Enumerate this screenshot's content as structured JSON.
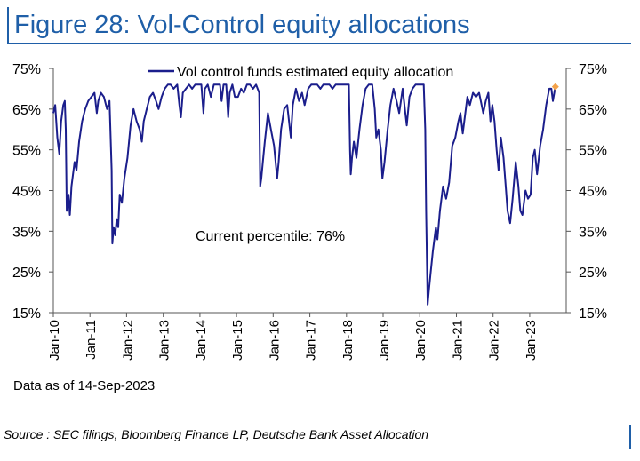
{
  "header": {
    "title": "Figure 28: Vol-Control equity allocations"
  },
  "footer": {
    "data_as_of": "Data as of 14-Sep-2023",
    "source": "Source : SEC filings, Bloomberg Finance LP, Deutsche Bank Asset Allocation"
  },
  "colors": {
    "series": "#1b1e8c",
    "current_marker": "#f4a24a",
    "accent": "#1f5fa8"
  },
  "chart_data": {
    "type": "line",
    "title": "",
    "xlabel": "",
    "ylabel": "",
    "x_tick_labels": [
      "Jan-10",
      "Jan-11",
      "Jan-12",
      "Jan-13",
      "Jan-14",
      "Jan-15",
      "Jan-16",
      "Jan-17",
      "Jan-18",
      "Jan-19",
      "Jan-20",
      "Jan-21",
      "Jan-22",
      "Jan-23"
    ],
    "y_tick_labels_left": [
      "75%",
      "65%",
      "55%",
      "45%",
      "35%",
      "25%",
      "15%"
    ],
    "y_tick_labels_right": [
      "75%",
      "65%",
      "55%",
      "45%",
      "35%",
      "25%",
      "15%"
    ],
    "ylim": [
      15,
      75
    ],
    "xlim": [
      "2010-01-01",
      "2023-12-31"
    ],
    "grid": false,
    "legend": {
      "position": "top",
      "entries": [
        "Vol control funds estimated equity allocation"
      ]
    },
    "annotation": "Current percentile: 76%",
    "current_point": {
      "x": "2023-09-14",
      "y": 70.5
    },
    "series": [
      {
        "name": "Vol control funds estimated equity allocation",
        "points": [
          [
            "2010-01-01",
            64
          ],
          [
            "2010-01-20",
            66
          ],
          [
            "2010-02-10",
            58
          ],
          [
            "2010-03-01",
            54
          ],
          [
            "2010-03-20",
            62
          ],
          [
            "2010-04-10",
            66
          ],
          [
            "2010-04-25",
            67
          ],
          [
            "2010-05-05",
            60
          ],
          [
            "2010-05-15",
            40
          ],
          [
            "2010-06-01",
            44
          ],
          [
            "2010-06-15",
            39
          ],
          [
            "2010-07-01",
            46
          ],
          [
            "2010-08-01",
            52
          ],
          [
            "2010-08-20",
            50
          ],
          [
            "2010-09-15",
            57
          ],
          [
            "2010-10-15",
            62
          ],
          [
            "2010-11-15",
            65
          ],
          [
            "2010-12-15",
            67
          ],
          [
            "2011-01-15",
            68
          ],
          [
            "2011-02-15",
            69
          ],
          [
            "2011-03-10",
            64
          ],
          [
            "2011-03-25",
            67
          ],
          [
            "2011-04-20",
            69
          ],
          [
            "2011-05-20",
            68
          ],
          [
            "2011-06-20",
            65
          ],
          [
            "2011-07-15",
            67
          ],
          [
            "2011-08-05",
            50
          ],
          [
            "2011-08-12",
            32
          ],
          [
            "2011-08-25",
            36
          ],
          [
            "2011-09-10",
            34
          ],
          [
            "2011-09-25",
            38
          ],
          [
            "2011-10-10",
            36
          ],
          [
            "2011-10-25",
            44
          ],
          [
            "2011-11-15",
            42
          ],
          [
            "2011-12-10",
            48
          ],
          [
            "2012-01-10",
            53
          ],
          [
            "2012-02-10",
            61
          ],
          [
            "2012-03-10",
            65
          ],
          [
            "2012-04-10",
            62
          ],
          [
            "2012-05-10",
            60
          ],
          [
            "2012-06-01",
            57
          ],
          [
            "2012-06-20",
            62
          ],
          [
            "2012-07-20",
            65
          ],
          [
            "2012-08-20",
            68
          ],
          [
            "2012-09-20",
            69
          ],
          [
            "2012-10-20",
            67
          ],
          [
            "2012-11-15",
            65
          ],
          [
            "2012-12-15",
            68
          ],
          [
            "2013-01-15",
            70
          ],
          [
            "2013-02-15",
            71
          ],
          [
            "2013-03-15",
            71
          ],
          [
            "2013-04-15",
            70
          ],
          [
            "2013-05-20",
            71
          ],
          [
            "2013-06-10",
            66
          ],
          [
            "2013-06-25",
            63
          ],
          [
            "2013-07-15",
            69
          ],
          [
            "2013-08-15",
            70
          ],
          [
            "2013-09-15",
            71
          ],
          [
            "2013-10-15",
            70
          ],
          [
            "2013-11-15",
            71
          ],
          [
            "2013-12-15",
            71
          ],
          [
            "2014-01-15",
            71
          ],
          [
            "2014-02-05",
            64
          ],
          [
            "2014-02-20",
            70
          ],
          [
            "2014-03-20",
            71
          ],
          [
            "2014-04-20",
            68
          ],
          [
            "2014-05-20",
            71
          ],
          [
            "2014-06-20",
            71
          ],
          [
            "2014-07-20",
            71
          ],
          [
            "2014-08-05",
            67
          ],
          [
            "2014-08-25",
            71
          ],
          [
            "2014-09-20",
            71
          ],
          [
            "2014-10-10",
            63
          ],
          [
            "2014-10-25",
            69
          ],
          [
            "2014-11-20",
            71
          ],
          [
            "2014-12-15",
            68
          ],
          [
            "2015-01-15",
            68
          ],
          [
            "2015-02-15",
            70
          ],
          [
            "2015-03-15",
            69
          ],
          [
            "2015-04-15",
            71
          ],
          [
            "2015-05-15",
            71
          ],
          [
            "2015-06-15",
            70
          ],
          [
            "2015-07-15",
            71
          ],
          [
            "2015-08-15",
            69
          ],
          [
            "2015-08-25",
            46
          ],
          [
            "2015-09-05",
            48
          ],
          [
            "2015-09-20",
            52
          ],
          [
            "2015-10-10",
            57
          ],
          [
            "2015-11-10",
            64
          ],
          [
            "2015-12-10",
            60
          ],
          [
            "2016-01-10",
            56
          ],
          [
            "2016-02-10",
            48
          ],
          [
            "2016-02-25",
            52
          ],
          [
            "2016-03-20",
            60
          ],
          [
            "2016-04-20",
            65
          ],
          [
            "2016-05-20",
            66
          ],
          [
            "2016-06-25",
            58
          ],
          [
            "2016-07-15",
            66
          ],
          [
            "2016-08-15",
            70
          ],
          [
            "2016-09-15",
            67
          ],
          [
            "2016-10-15",
            69
          ],
          [
            "2016-11-10",
            66
          ],
          [
            "2016-12-15",
            70
          ],
          [
            "2017-01-15",
            71
          ],
          [
            "2017-02-15",
            71
          ],
          [
            "2017-03-15",
            71
          ],
          [
            "2017-04-15",
            70
          ],
          [
            "2017-05-15",
            71
          ],
          [
            "2017-06-15",
            71
          ],
          [
            "2017-07-15",
            71
          ],
          [
            "2017-08-15",
            70
          ],
          [
            "2017-09-15",
            71
          ],
          [
            "2017-10-15",
            71
          ],
          [
            "2017-11-15",
            71
          ],
          [
            "2017-12-15",
            71
          ],
          [
            "2018-01-25",
            71
          ],
          [
            "2018-02-05",
            55
          ],
          [
            "2018-02-12",
            49
          ],
          [
            "2018-02-25",
            53
          ],
          [
            "2018-03-15",
            57
          ],
          [
            "2018-04-10",
            53
          ],
          [
            "2018-05-10",
            60
          ],
          [
            "2018-06-10",
            66
          ],
          [
            "2018-07-10",
            70
          ],
          [
            "2018-08-10",
            71
          ],
          [
            "2018-09-15",
            71
          ],
          [
            "2018-10-10",
            65
          ],
          [
            "2018-10-25",
            58
          ],
          [
            "2018-11-15",
            60
          ],
          [
            "2018-12-10",
            55
          ],
          [
            "2018-12-25",
            48
          ],
          [
            "2019-01-15",
            52
          ],
          [
            "2019-02-15",
            60
          ],
          [
            "2019-03-15",
            66
          ],
          [
            "2019-04-15",
            70
          ],
          [
            "2019-05-15",
            67
          ],
          [
            "2019-06-10",
            64
          ],
          [
            "2019-07-15",
            70
          ],
          [
            "2019-08-10",
            64
          ],
          [
            "2019-08-25",
            61
          ],
          [
            "2019-09-20",
            68
          ],
          [
            "2019-10-20",
            70
          ],
          [
            "2019-11-20",
            71
          ],
          [
            "2019-12-20",
            71
          ],
          [
            "2020-01-20",
            71
          ],
          [
            "2020-02-10",
            71
          ],
          [
            "2020-02-25",
            60
          ],
          [
            "2020-03-05",
            40
          ],
          [
            "2020-03-20",
            17
          ],
          [
            "2020-03-30",
            20
          ],
          [
            "2020-04-15",
            24
          ],
          [
            "2020-05-10",
            30
          ],
          [
            "2020-06-10",
            36
          ],
          [
            "2020-06-25",
            33
          ],
          [
            "2020-07-20",
            40
          ],
          [
            "2020-08-20",
            46
          ],
          [
            "2020-09-20",
            43
          ],
          [
            "2020-10-20",
            47
          ],
          [
            "2020-11-20",
            56
          ],
          [
            "2020-12-20",
            58
          ],
          [
            "2021-01-20",
            62
          ],
          [
            "2021-02-10",
            64
          ],
          [
            "2021-03-05",
            59
          ],
          [
            "2021-03-25",
            63
          ],
          [
            "2021-04-20",
            68
          ],
          [
            "2021-05-15",
            66
          ],
          [
            "2021-06-15",
            69
          ],
          [
            "2021-07-15",
            68
          ],
          [
            "2021-08-15",
            69
          ],
          [
            "2021-09-25",
            64
          ],
          [
            "2021-10-20",
            67
          ],
          [
            "2021-11-15",
            69
          ],
          [
            "2021-12-05",
            62
          ],
          [
            "2021-12-25",
            66
          ],
          [
            "2022-01-15",
            62
          ],
          [
            "2022-02-05",
            55
          ],
          [
            "2022-02-25",
            50
          ],
          [
            "2022-03-20",
            58
          ],
          [
            "2022-04-15",
            53
          ],
          [
            "2022-05-10",
            45
          ],
          [
            "2022-05-25",
            40
          ],
          [
            "2022-06-20",
            37
          ],
          [
            "2022-07-15",
            43
          ],
          [
            "2022-08-15",
            52
          ],
          [
            "2022-09-10",
            46
          ],
          [
            "2022-09-30",
            40
          ],
          [
            "2022-10-20",
            39
          ],
          [
            "2022-11-20",
            45
          ],
          [
            "2022-12-15",
            43
          ],
          [
            "2023-01-10",
            44
          ],
          [
            "2023-02-01",
            53
          ],
          [
            "2023-02-20",
            55
          ],
          [
            "2023-03-15",
            49
          ],
          [
            "2023-04-15",
            56
          ],
          [
            "2023-05-15",
            60
          ],
          [
            "2023-06-15",
            66
          ],
          [
            "2023-07-15",
            70
          ],
          [
            "2023-08-05",
            70
          ],
          [
            "2023-08-20",
            67
          ],
          [
            "2023-09-14",
            70.5
          ]
        ]
      }
    ]
  }
}
